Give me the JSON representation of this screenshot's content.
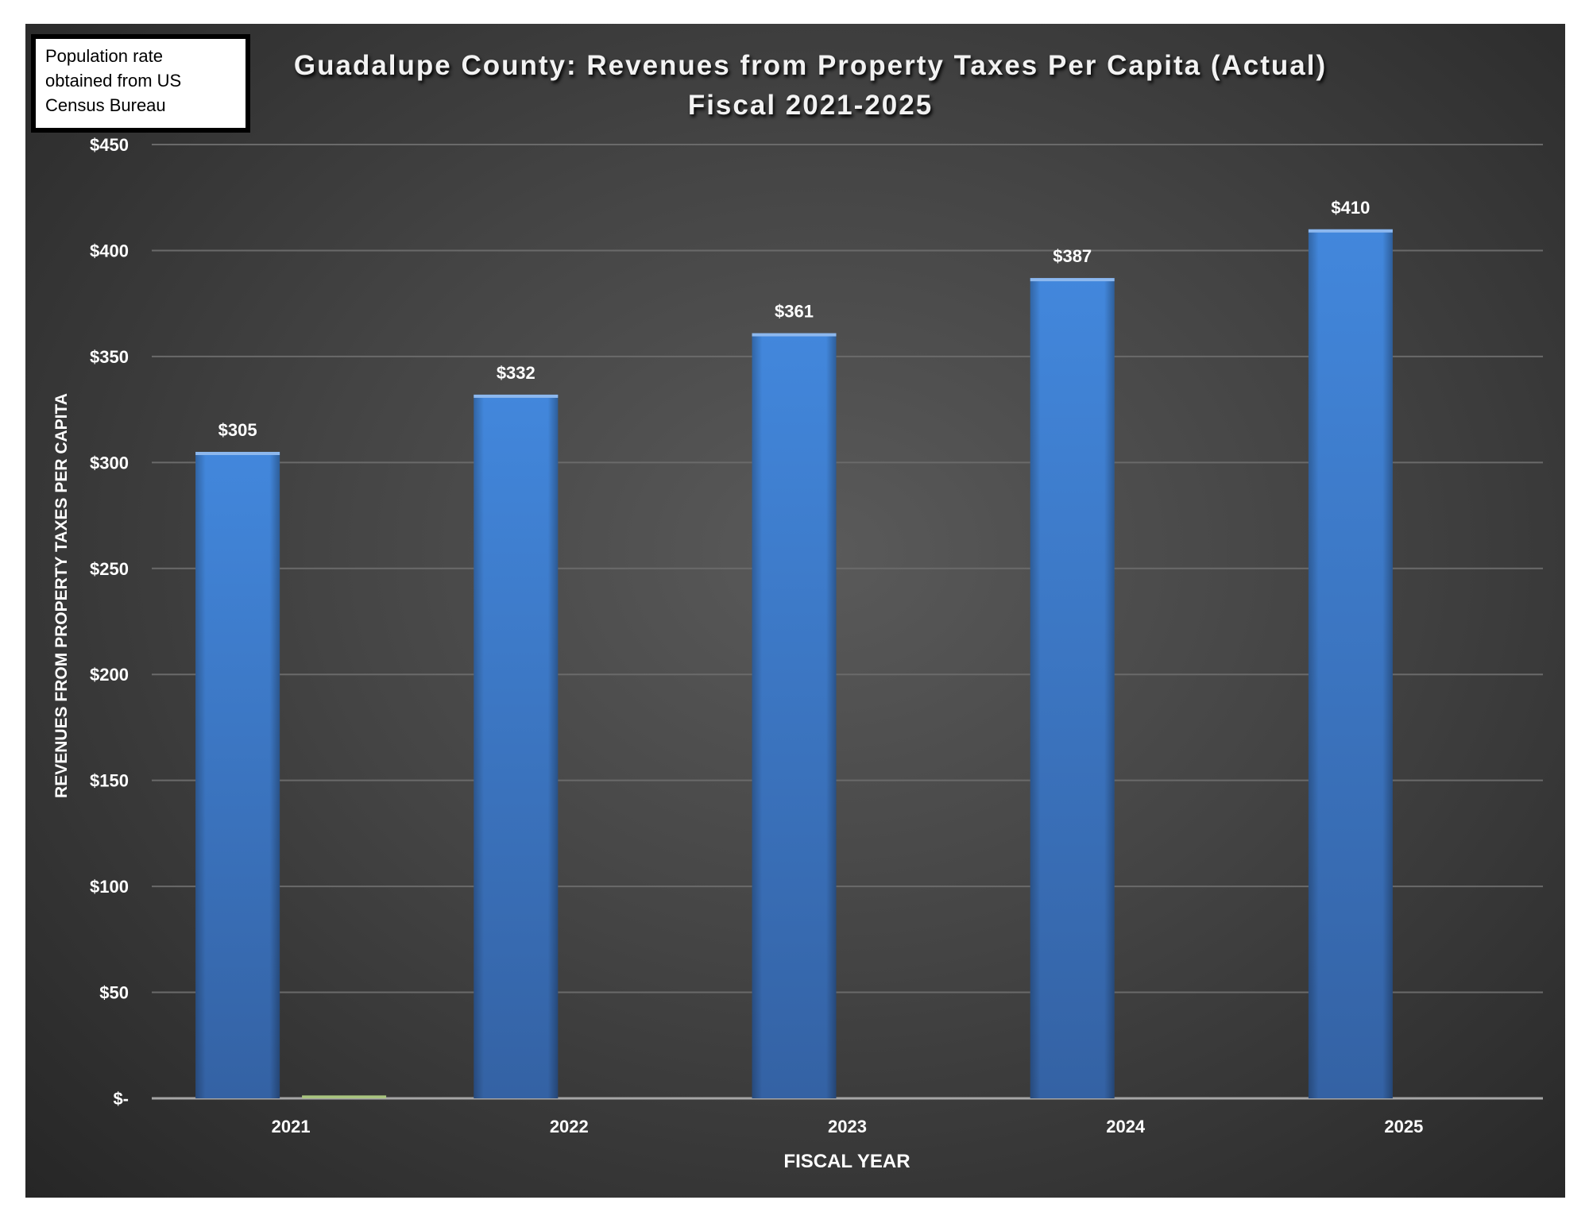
{
  "note": [
    "Population rate",
    "obtained from US",
    "Census Bureau"
  ],
  "chart_data": {
    "type": "bar",
    "title": [
      "Guadalupe County: Revenues from Property Taxes Per Capita (Actual)",
      "Fiscal 2021-2025"
    ],
    "xlabel": "FISCAL YEAR",
    "ylabel": "REVENUES FROM PROPERTY TAXES PER CAPITA",
    "categories": [
      "2021",
      "2022",
      "2023",
      "2024",
      "2025"
    ],
    "series": [
      {
        "values": [
          305,
          332,
          361,
          387,
          410
        ],
        "labels": [
          "$305",
          "$332",
          "$361",
          "$387",
          "$410"
        ],
        "color": "#3f7fd4"
      },
      {
        "values": [
          1,
          0,
          0,
          0,
          0
        ],
        "color": "#a9c47f"
      }
    ],
    "ylim": [
      0,
      450
    ],
    "yticks": [
      0,
      50,
      100,
      150,
      200,
      250,
      300,
      350,
      400,
      450
    ],
    "ytick_labels": [
      "$-",
      "$50",
      "$100",
      "$150",
      "$200",
      "$250",
      "$300",
      "$350",
      "$400",
      "$450"
    ],
    "grid": true,
    "legend": "none",
    "background": "#3c3c3c"
  }
}
